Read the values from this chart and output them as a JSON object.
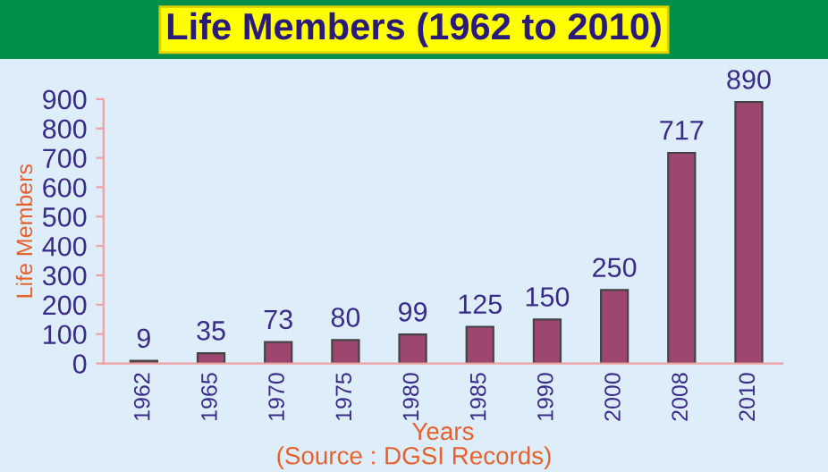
{
  "chart_data": {
    "type": "bar",
    "title": "Life Members (1962 to 2010)",
    "categories": [
      "1962",
      "1965",
      "1970",
      "1975",
      "1980",
      "1985",
      "1990",
      "2000",
      "2008",
      "2010"
    ],
    "values": [
      9,
      35,
      73,
      80,
      99,
      125,
      150,
      250,
      717,
      890
    ],
    "color": "#9c4670",
    "data_labels": true,
    "ylim": [
      0,
      900
    ],
    "yticks": [
      0,
      100,
      200,
      300,
      400,
      500,
      600,
      700,
      800,
      900
    ],
    "xlabel": "Years",
    "ylabel": "Life Members",
    "annotations": [
      "(Source : DGSI Records)"
    ],
    "grid": false,
    "legend": false
  }
}
